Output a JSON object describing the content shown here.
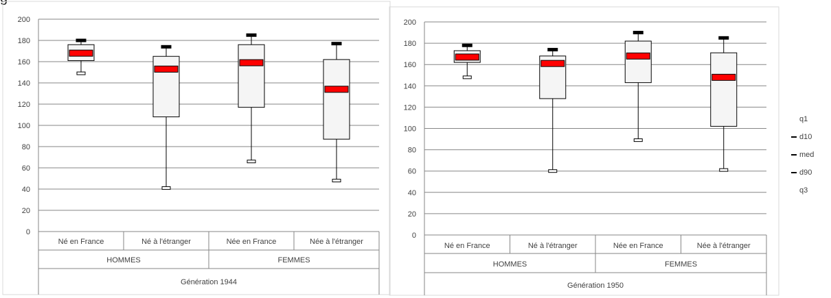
{
  "header_fragment": "g",
  "chart_data": [
    {
      "type": "box",
      "title": "",
      "ylim": [
        0,
        200
      ],
      "yticks": [
        0,
        20,
        40,
        60,
        80,
        100,
        120,
        140,
        160,
        180,
        200
      ],
      "grid": true,
      "categories": [
        "Né en France",
        "Né à l'étranger",
        "Née en France",
        "Née à l'étranger"
      ],
      "groups": [
        {
          "label": "HOMMES",
          "span": [
            0,
            1
          ]
        },
        {
          "label": "FEMMES",
          "span": [
            2,
            3
          ]
        }
      ],
      "generation_label": "Génération 1944",
      "series": [
        {
          "name": "q1",
          "values": [
            161,
            108,
            117,
            87
          ]
        },
        {
          "name": "d10",
          "values": [
            149,
            41,
            66,
            48
          ]
        },
        {
          "name": "med",
          "values": [
            168,
            153,
            159,
            134
          ]
        },
        {
          "name": "d90",
          "values": [
            180,
            174,
            185,
            177
          ]
        },
        {
          "name": "q3",
          "values": [
            176,
            165,
            176,
            162
          ]
        }
      ]
    },
    {
      "type": "box",
      "title": "",
      "ylim": [
        0,
        200
      ],
      "yticks": [
        0,
        20,
        40,
        60,
        80,
        100,
        120,
        140,
        160,
        180,
        200
      ],
      "grid": true,
      "categories": [
        "Né en France",
        "Né à l'étranger",
        "Née en France",
        "Née à l'étranger"
      ],
      "groups": [
        {
          "label": "HOMMES",
          "span": [
            0,
            1
          ]
        },
        {
          "label": "FEMMES",
          "span": [
            2,
            3
          ]
        }
      ],
      "generation_label": "Génération 1950",
      "series": [
        {
          "name": "q1",
          "values": [
            162,
            128,
            143,
            102
          ]
        },
        {
          "name": "d10",
          "values": [
            148,
            60,
            89,
            61
          ]
        },
        {
          "name": "med",
          "values": [
            167,
            161,
            168,
            148
          ]
        },
        {
          "name": "d90",
          "values": [
            178,
            174,
            190,
            185
          ]
        },
        {
          "name": "q3",
          "values": [
            173,
            168,
            182,
            171
          ]
        }
      ]
    }
  ],
  "legend": {
    "items": [
      {
        "label": "q1",
        "marker": false
      },
      {
        "label": "d10",
        "marker": true
      },
      {
        "label": "med",
        "marker": true
      },
      {
        "label": "d90",
        "marker": true
      },
      {
        "label": "q3",
        "marker": false
      }
    ],
    "placement": "right"
  },
  "colors": {
    "box_fill": "#f5f5f5",
    "median": "#ff0000",
    "grid": "#868686",
    "axis": "#868686",
    "whisker": "#000000"
  }
}
